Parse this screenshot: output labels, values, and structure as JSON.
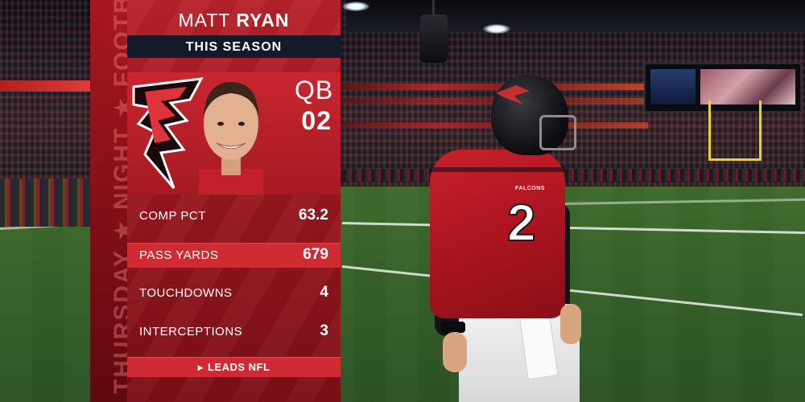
{
  "graphic": {
    "player_first_name": "MATT",
    "player_last_name": "RYAN",
    "period": "THIS SEASON",
    "position": "QB",
    "jersey_number": "02",
    "side_banner_text": "THURSDAY ★ NIGHT ★ FOOTBALL",
    "stats": [
      {
        "label": "COMP PCT",
        "value": "63.2",
        "highlighted": false
      },
      {
        "label": "PASS YARDS",
        "value": "679",
        "highlighted": true
      },
      {
        "label": "TOUCHDOWNS",
        "value": "4",
        "highlighted": false
      },
      {
        "label": "INTERCEPTIONS",
        "value": "3",
        "highlighted": false
      }
    ],
    "footer_label": "LEADS NFL",
    "footer_icon": "triangle-right-icon",
    "team_logo_icon": "falcon-logo-icon"
  },
  "scene": {
    "jersey_team_text": "FALCONS",
    "jersey_number_text": "2"
  },
  "colors": {
    "panel_red": "#9c1820",
    "highlight_red": "#cf2b33",
    "season_bar_navy": "#141a2a",
    "text_white": "#ffffff",
    "field_green": "#37622a"
  }
}
